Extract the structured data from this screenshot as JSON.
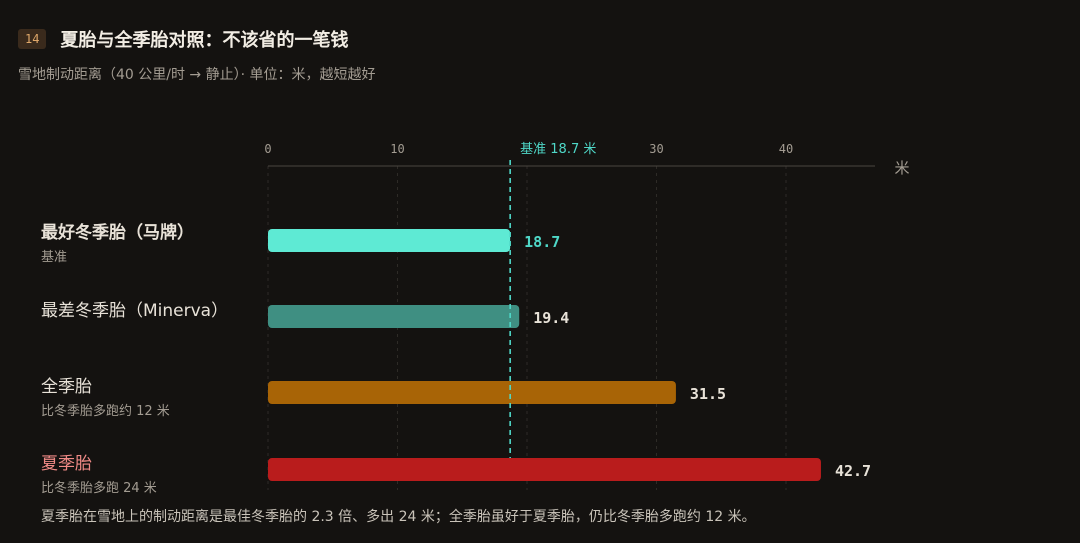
{
  "header": {
    "badge": "14",
    "title": "夏胎与全季胎对照：不该省的一笔钱",
    "subtitle": "雪地制动距离（40 公里/时 → 静止）· 单位：米，越短越好"
  },
  "chart_data": {
    "type": "bar",
    "orientation": "horizontal",
    "unit": "米",
    "xlim": [
      0,
      46
    ],
    "ticks": [
      0,
      10,
      20,
      30,
      40
    ],
    "tick_labels": [
      "0",
      "10",
      "",
      "30",
      "40"
    ],
    "grid": true,
    "reference_line": {
      "value": 18.7,
      "label": "基准 18.7 米",
      "color": "#4fd8c8"
    },
    "bars": [
      {
        "name": "最好冬季胎（马牌）",
        "note": "基准",
        "value": 18.7,
        "value_label": "18.7",
        "color": "#5eead4",
        "value_color": "#4fd8c8",
        "name_style": "bold"
      },
      {
        "name": "最差冬季胎（Minerva）",
        "note": "",
        "value": 19.4,
        "value_label": "19.4",
        "color": "#3f8f82",
        "value_color": "#e8e2d8",
        "name_style": "normal"
      },
      {
        "name": "全季胎",
        "note": "比冬季胎多跑约 12 米",
        "value": 31.5,
        "value_label": "31.5",
        "color": "#a86406",
        "value_color": "#e8e2d8",
        "name_style": "normal"
      },
      {
        "name": "夏季胎",
        "note": "比冬季胎多跑 24 米",
        "value": 42.7,
        "value_label": "42.7",
        "color": "#b91c1c",
        "value_color": "#e8e2d8",
        "name_style": "red"
      }
    ]
  },
  "footnote": "夏季胎在雪地上的制动距离是最佳冬季胎的 2.3 倍、多出 24 米；全季胎虽好于夏季胎，仍比冬季胎多跑约 12 米。"
}
